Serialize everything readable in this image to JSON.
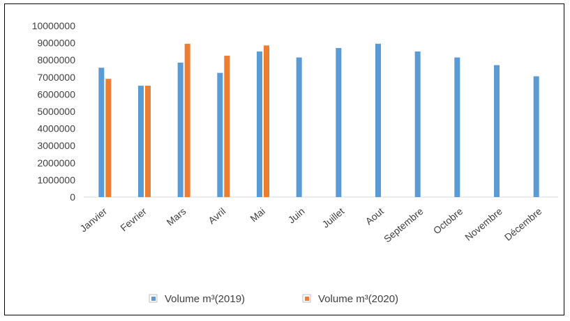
{
  "chart_data": {
    "type": "bar",
    "title": "",
    "xlabel": "",
    "ylabel": "",
    "ylim": [
      0,
      10000000
    ],
    "yticks": [
      0,
      1000000,
      2000000,
      3000000,
      4000000,
      5000000,
      6000000,
      7000000,
      8000000,
      9000000,
      10000000
    ],
    "grid": false,
    "legend": "bottom",
    "categories": [
      "Janvier",
      "Fevrier",
      "Mars",
      "Avril",
      "Mai",
      "Juin",
      "Juillet",
      "Aout",
      "Septembre",
      "Octobre",
      "Novembre",
      "Décembre"
    ],
    "series": [
      {
        "name": "Volume m³(2019)",
        "color": "#5b9bd5",
        "values": [
          7550000,
          6500000,
          7850000,
          7250000,
          8500000,
          8150000,
          8700000,
          8950000,
          8500000,
          8150000,
          7700000,
          7050000
        ]
      },
      {
        "name": "Volume m³(2020)",
        "color": "#ed7d31",
        "values": [
          6900000,
          6500000,
          8950000,
          8250000,
          8850000,
          null,
          null,
          null,
          null,
          null,
          null,
          null
        ]
      }
    ]
  }
}
